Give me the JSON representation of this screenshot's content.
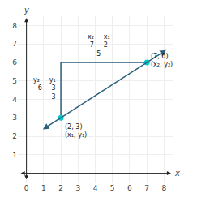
{
  "chart_data": {
    "type": "line",
    "xlabel": "x",
    "ylabel": "y",
    "xlim": [
      -0.5,
      8.5
    ],
    "ylim": [
      -0.5,
      8.5
    ],
    "xticks": [
      0,
      1,
      2,
      3,
      4,
      5,
      6,
      7,
      8
    ],
    "yticks": [
      1,
      2,
      3,
      4,
      5,
      6,
      7,
      8
    ],
    "grid": true,
    "series": [
      {
        "type": "line",
        "line_style": "arrows",
        "color": "#2b5f7b",
        "x": [
          2,
          7
        ],
        "values": [
          3,
          6
        ]
      },
      {
        "type": "line",
        "line_style": "solid",
        "color": "#2b5f7b",
        "x": [
          2,
          2,
          7
        ],
        "values": [
          3,
          6,
          6
        ]
      },
      {
        "type": "scatter",
        "marker": "circle",
        "color": "#00cccc",
        "x": [
          2,
          7
        ],
        "values": [
          3,
          6
        ],
        "value_labels": [
          "(2, 3)\n(x₁, y₁)",
          "(7, 6)\n(x₂, y₂)"
        ]
      }
    ],
    "annotations": [
      "y₂ − y₁\n6 − 3\n3",
      "x₂ − x₁\n7 − 2\n5"
    ]
  }
}
